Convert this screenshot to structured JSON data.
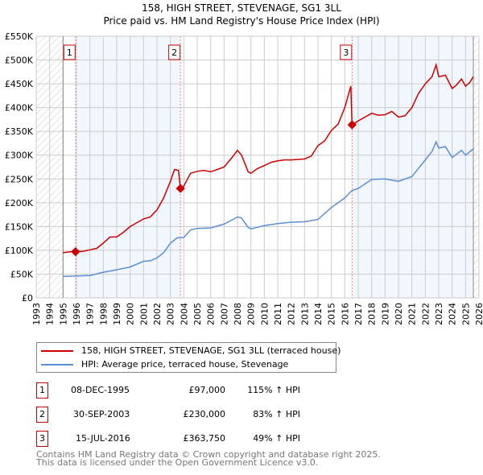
{
  "title_line1": "158, HIGH STREET, STEVENAGE, SG1 3LL",
  "title_line2": "Price paid vs. HM Land Registry's House Price Index (HPI)",
  "chart_data": {
    "type": "line",
    "xlim": [
      1993,
      2026
    ],
    "ylim": [
      0,
      550000
    ],
    "x_ticks": [
      "1993",
      "1994",
      "1995",
      "1996",
      "1997",
      "1998",
      "1999",
      "2000",
      "2001",
      "2002",
      "2003",
      "2004",
      "2005",
      "2006",
      "2007",
      "2008",
      "2009",
      "2010",
      "2011",
      "2012",
      "2013",
      "2014",
      "2015",
      "2016",
      "2017",
      "2018",
      "2019",
      "2020",
      "2021",
      "2022",
      "2023",
      "2024",
      "2025",
      "2026"
    ],
    "y_ticks": [
      {
        "v": 0,
        "label": "£0"
      },
      {
        "v": 50000,
        "label": "£50K"
      },
      {
        "v": 100000,
        "label": "£100K"
      },
      {
        "v": 150000,
        "label": "£150K"
      },
      {
        "v": 200000,
        "label": "£200K"
      },
      {
        "v": 250000,
        "label": "£250K"
      },
      {
        "v": 300000,
        "label": "£300K"
      },
      {
        "v": 350000,
        "label": "£350K"
      },
      {
        "v": 400000,
        "label": "£400K"
      },
      {
        "v": 450000,
        "label": "£450K"
      },
      {
        "v": 500000,
        "label": "£500K"
      },
      {
        "v": 550000,
        "label": "£550K"
      }
    ],
    "grid": true,
    "hatched_ranges": [
      [
        1993,
        1995
      ],
      [
        2025.58,
        2026
      ]
    ],
    "shaded_ranges": [
      [
        1995.93,
        2003.75
      ],
      [
        2016.54,
        2025.58
      ]
    ],
    "series": [
      {
        "name": "158, HIGH STREET, STEVENAGE, SG1 3LL (terraced house)",
        "color": "#cc0000",
        "x": [
          1995.0,
          1995.5,
          1995.93,
          1996.5,
          1997,
          1997.5,
          1998,
          1998.5,
          1999,
          1999.5,
          2000,
          2000.5,
          2001,
          2001.5,
          2002,
          2002.5,
          2003,
          2003.3,
          2003.6,
          2003.75,
          2004,
          2004.5,
          2005,
          2005.5,
          2006,
          2006.5,
          2007,
          2007.5,
          2008,
          2008.3,
          2008.8,
          2009,
          2009.5,
          2010,
          2010.5,
          2011,
          2011.5,
          2012,
          2012.5,
          2013,
          2013.5,
          2014,
          2014.5,
          2015,
          2015.5,
          2016,
          2016.45,
          2016.54,
          2017,
          2017.5,
          2018,
          2018.5,
          2019,
          2019.5,
          2020,
          2020.5,
          2021,
          2021.5,
          2022,
          2022.5,
          2022.8,
          2023,
          2023.5,
          2024,
          2024.3,
          2024.7,
          2025,
          2025.3,
          2025.58
        ],
        "y": [
          95000,
          97000,
          97000,
          98000,
          101000,
          104000,
          115000,
          128000,
          128000,
          138000,
          150000,
          158000,
          166000,
          170000,
          185000,
          210000,
          245000,
          270000,
          268000,
          230000,
          235000,
          262000,
          266000,
          268000,
          265000,
          270000,
          275000,
          292000,
          310000,
          300000,
          265000,
          262000,
          272000,
          278000,
          285000,
          288000,
          290000,
          290000,
          291000,
          292000,
          298000,
          320000,
          330000,
          352000,
          365000,
          400000,
          445000,
          363750,
          372000,
          380000,
          388000,
          384000,
          385000,
          392000,
          380000,
          383000,
          400000,
          430000,
          450000,
          465000,
          490000,
          465000,
          468000,
          440000,
          447000,
          460000,
          445000,
          452000,
          465000
        ]
      },
      {
        "name": "HPI: Average price, terraced house, Stevenage",
        "color": "#5b8fd4",
        "x": [
          1995.0,
          1996,
          1997,
          1998,
          1999,
          2000,
          2001,
          2001.5,
          2002,
          2002.5,
          2003,
          2003.5,
          2004,
          2004.5,
          2005,
          2006,
          2007,
          2008,
          2008.3,
          2008.8,
          2009,
          2010,
          2011,
          2012,
          2013,
          2014,
          2015,
          2016,
          2016.5,
          2017,
          2018,
          2019,
          2020,
          2021,
          2022,
          2022.5,
          2022.8,
          2023,
          2023.5,
          2024,
          2024.7,
          2025,
          2025.58
        ],
        "y": [
          45000,
          46000,
          47000,
          54000,
          59000,
          65000,
          77000,
          78000,
          84000,
          95000,
          115000,
          126000,
          127000,
          143000,
          146000,
          147000,
          155000,
          170000,
          168000,
          148000,
          145000,
          152000,
          156000,
          159000,
          160000,
          165000,
          190000,
          210000,
          225000,
          230000,
          249000,
          250000,
          245000,
          255000,
          290000,
          308000,
          328000,
          315000,
          318000,
          295000,
          310000,
          300000,
          313000
        ]
      }
    ],
    "sales": [
      {
        "label": "1",
        "x": 1995.93,
        "y": 97000
      },
      {
        "label": "2",
        "x": 2003.75,
        "y": 230000
      },
      {
        "label": "3",
        "x": 2016.54,
        "y": 363750
      }
    ]
  },
  "legend": [
    {
      "label": "158, HIGH STREET, STEVENAGE, SG1 3LL (terraced house)",
      "color": "#cc0000"
    },
    {
      "label": "HPI: Average price, terraced house, Stevenage",
      "color": "#5b8fd4"
    }
  ],
  "table": [
    {
      "num": "1",
      "date": "08-DEC-1995",
      "price": "£97,000",
      "hpi": "115% ↑ HPI"
    },
    {
      "num": "2",
      "date": "30-SEP-2003",
      "price": "£230,000",
      "hpi": "83% ↑ HPI"
    },
    {
      "num": "3",
      "date": "15-JUL-2016",
      "price": "£363,750",
      "hpi": "49% ↑ HPI"
    }
  ],
  "footer_line1": "Contains HM Land Registry data © Crown copyright and database right 2025.",
  "footer_line2": "This data is licensed under the Open Government Licence v3.0."
}
